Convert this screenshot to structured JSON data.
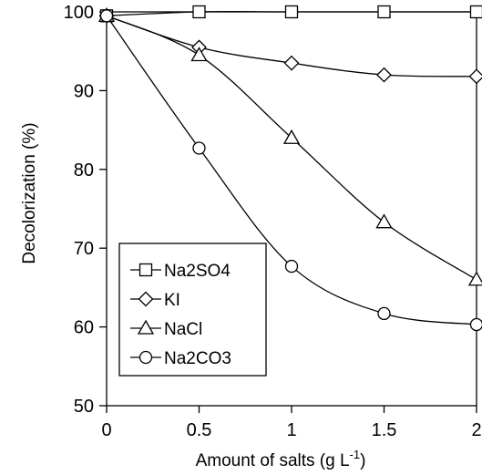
{
  "chart_data": {
    "type": "line",
    "title": "",
    "xlabel": "Amount of salts (g L",
    "xlabel_sup": "-1",
    "xlabel_end": ")",
    "ylabel": "Decolorization (%)",
    "xlim": [
      0,
      2
    ],
    "ylim": [
      50,
      100
    ],
    "xticks": [
      0,
      0.5,
      1,
      1.5,
      2
    ],
    "xtick_labels": [
      "0",
      "0.5",
      "1",
      "1.5",
      "2"
    ],
    "yticks": [
      50,
      60,
      70,
      80,
      90,
      100
    ],
    "ytick_labels": [
      "50",
      "60",
      "70",
      "80",
      "90",
      "100"
    ],
    "grid": false,
    "legend_position": "bottom-left",
    "x": [
      0,
      0.5,
      1,
      1.5,
      2
    ],
    "series": [
      {
        "name": "Na2SO4",
        "marker": "square",
        "values": [
          99.5,
          100,
          100,
          100,
          100
        ]
      },
      {
        "name": "KI",
        "marker": "diamond",
        "values": [
          99.5,
          95.5,
          93.5,
          92,
          91.8
        ]
      },
      {
        "name": "NaCl",
        "marker": "triangle",
        "values": [
          99.5,
          94.5,
          84,
          73.3,
          66
        ]
      },
      {
        "name": "Na2CO3",
        "marker": "circle",
        "values": [
          99.5,
          82.7,
          67.7,
          61.7,
          60.3
        ]
      }
    ]
  }
}
